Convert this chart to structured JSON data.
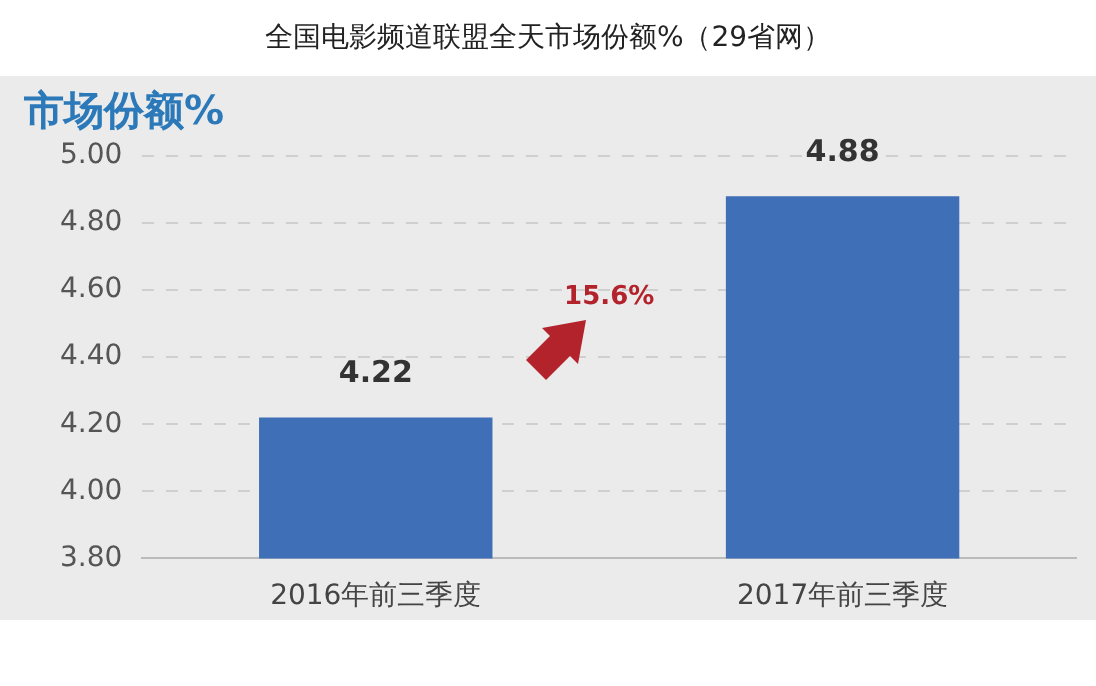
{
  "chart_data": {
    "type": "bar",
    "title": "全国电影频道联盟全天市场份额%（29省网）",
    "ylabel": "市场份额%",
    "categories": [
      "2016年前三季度",
      "2017年前三季度"
    ],
    "series": [
      {
        "color": "#3f6fb6",
        "values": [
          4.22,
          4.88
        ]
      }
    ],
    "ylim": [
      3.8,
      5.0
    ],
    "yticks": [
      {
        "value": 3.8,
        "label": "3.80"
      },
      {
        "value": 4.0,
        "label": "4.00"
      },
      {
        "value": 4.2,
        "label": "4.20"
      },
      {
        "value": 4.4,
        "label": "4.40"
      },
      {
        "value": 4.6,
        "label": "4.60"
      },
      {
        "value": 4.8,
        "label": "4.80"
      },
      {
        "value": 5.0,
        "label": "5.00"
      }
    ],
    "grid": "y",
    "data_labels": true,
    "legend": false,
    "annotations": [
      "15.6%"
    ]
  }
}
